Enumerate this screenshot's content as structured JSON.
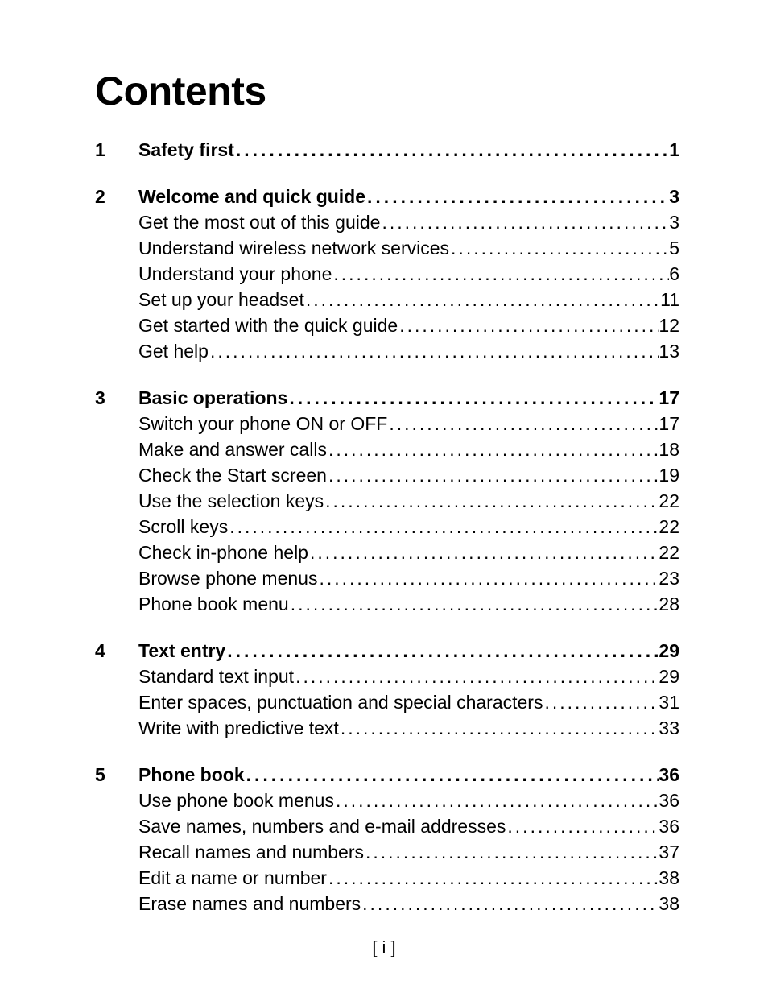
{
  "title": "Contents",
  "footer": "[ i ]",
  "leader_char": ".",
  "sections": [
    {
      "num": "1",
      "heading": {
        "label": "Safety first",
        "page": "1"
      },
      "subs": []
    },
    {
      "num": "2",
      "heading": {
        "label": "Welcome and quick guide",
        "page": "3"
      },
      "subs": [
        {
          "label": "Get the most out of this guide",
          "page": "3"
        },
        {
          "label": "Understand wireless network services",
          "page": "5"
        },
        {
          "label": "Understand your phone",
          "page": "6"
        },
        {
          "label": "Set up your headset",
          "page": "11"
        },
        {
          "label": "Get started with the quick guide",
          "page": "12"
        },
        {
          "label": "Get help",
          "page": "13"
        }
      ]
    },
    {
      "num": "3",
      "heading": {
        "label": "Basic operations",
        "page": "17"
      },
      "subs": [
        {
          "label": "Switch your phone ON or OFF",
          "page": "17"
        },
        {
          "label": "Make and answer calls",
          "page": "18"
        },
        {
          "label": "Check the Start screen",
          "page": "19"
        },
        {
          "label": "Use the selection keys",
          "page": "22"
        },
        {
          "label": "Scroll keys",
          "page": "22"
        },
        {
          "label": "Check in-phone help",
          "page": "22"
        },
        {
          "label": "Browse phone menus",
          "page": "23"
        },
        {
          "label": "Phone book menu",
          "page": "28"
        }
      ]
    },
    {
      "num": "4",
      "heading": {
        "label": "Text entry",
        "page": "29"
      },
      "subs": [
        {
          "label": "Standard text input",
          "page": "29"
        },
        {
          "label": "Enter spaces, punctuation and special characters",
          "page": "31"
        },
        {
          "label": "Write with predictive text",
          "page": "33"
        }
      ]
    },
    {
      "num": "5",
      "heading": {
        "label": "Phone book",
        "page": "36"
      },
      "subs": [
        {
          "label": "Use phone book menus",
          "page": "36"
        },
        {
          "label": "Save names, numbers and e-mail addresses",
          "page": "36"
        },
        {
          "label": "Recall names and numbers",
          "page": "37"
        },
        {
          "label": "Edit a name or number",
          "page": "38"
        },
        {
          "label": "Erase names and numbers",
          "page": "38"
        }
      ]
    }
  ]
}
